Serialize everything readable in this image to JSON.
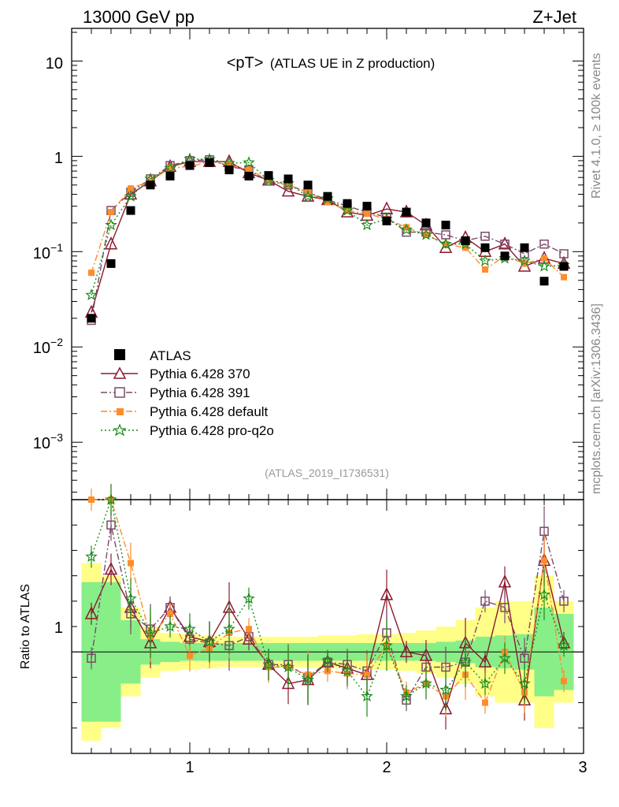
{
  "header": {
    "left": "13000 GeV pp",
    "right": "Z+Jet"
  },
  "side_labels": {
    "rivet": "Rivet 4.1.0, ≥ 100k events",
    "mcplots": "mcplots.cern.ch [arXiv:1306.3436]"
  },
  "chart_data": {
    "type": "scatter",
    "title": "<pT> (ATLAS UE in Z production)",
    "title_main": "<pT>",
    "title_sub": "(ATLAS UE in Z production)",
    "analysis_id": "(ATLAS_2019_I1736531)",
    "xlim": [
      0.4,
      3.0
    ],
    "ylim": [
      0.00025,
      22
    ],
    "yscale": "log",
    "xticks": [
      "1",
      "2",
      "3"
    ],
    "yticks": [
      "10",
      "1",
      "10^-1",
      "10^-2",
      "10^-3"
    ],
    "ratio_ylabel": "Ratio to ATLAS",
    "ratio_ylim": [
      0.2,
      2.2
    ],
    "ratio_tick": "1",
    "x": [
      0.5,
      0.6,
      0.7,
      0.8,
      0.9,
      1.0,
      1.1,
      1.2,
      1.3,
      1.4,
      1.5,
      1.6,
      1.7,
      1.8,
      1.9,
      2.0,
      2.1,
      2.2,
      2.3,
      2.4,
      2.5,
      2.6,
      2.7,
      2.8,
      2.9
    ],
    "data": {
      "name": "ATLAS",
      "values": [
        0.02,
        0.075,
        0.27,
        0.5,
        0.62,
        0.8,
        0.86,
        0.72,
        0.62,
        0.63,
        0.58,
        0.5,
        0.38,
        0.32,
        0.3,
        0.21,
        0.26,
        0.2,
        0.19,
        0.13,
        0.11,
        0.09,
        0.11,
        0.049,
        0.07
      ]
    },
    "series": [
      {
        "name": "Pythia 6.428 370",
        "color": "#8b1a2e",
        "marker": "triangle-open",
        "line": "solid",
        "values": [
          0.023,
          0.12,
          0.4,
          0.55,
          0.78,
          0.88,
          0.88,
          0.88,
          0.67,
          0.56,
          0.43,
          0.38,
          0.35,
          0.26,
          0.24,
          0.28,
          0.26,
          0.19,
          0.11,
          0.14,
          0.1,
          0.12,
          0.07,
          0.085,
          0.075
        ]
      },
      {
        "name": "Pythia 6.428 391",
        "color": "#7a4a6a",
        "marker": "square-open",
        "line": "dashdot",
        "values": [
          0.019,
          0.27,
          0.42,
          0.58,
          0.8,
          0.9,
          0.92,
          0.78,
          0.72,
          0.55,
          0.5,
          0.42,
          0.35,
          0.3,
          0.26,
          0.23,
          0.16,
          0.16,
          0.15,
          0.13,
          0.145,
          0.12,
          0.095,
          0.12,
          0.095
        ]
      },
      {
        "name": "Pythia 6.428 default",
        "color": "#ff8c2a",
        "marker": "square-filled",
        "line": "dashdot",
        "values": [
          0.06,
          0.26,
          0.46,
          0.55,
          0.76,
          0.78,
          0.88,
          0.82,
          0.73,
          0.56,
          0.5,
          0.42,
          0.33,
          0.27,
          0.25,
          0.22,
          0.18,
          0.15,
          0.12,
          0.11,
          0.065,
          0.09,
          0.075,
          0.085,
          0.054
        ]
      },
      {
        "name": "Pythia 6.428 pro-q2o",
        "color": "#1a8c1a",
        "marker": "star-open",
        "line": "dotted",
        "values": [
          0.035,
          0.19,
          0.38,
          0.58,
          0.75,
          0.94,
          0.93,
          0.85,
          0.86,
          0.56,
          0.52,
          0.38,
          0.36,
          0.27,
          0.19,
          0.22,
          0.17,
          0.15,
          0.12,
          0.12,
          0.08,
          0.085,
          0.08,
          0.07,
          0.072
        ]
      }
    ],
    "ratio_series": [
      {
        "name": "Pythia 6.428 370",
        "values": [
          1.3,
          1.65,
          1.35,
          1.07,
          1.35,
          1.12,
          1.08,
          1.35,
          1.1,
          0.9,
          0.75,
          0.78,
          0.92,
          0.87,
          0.82,
          1.45,
          1.0,
          0.97,
          0.55,
          1.07,
          0.92,
          1.55,
          0.62,
          1.72,
          1.07
        ]
      },
      {
        "name": "Pythia 6.428 391",
        "values": [
          0.95,
          2.0,
          1.3,
          1.18,
          1.35,
          1.1,
          1.07,
          1.05,
          1.12,
          0.9,
          0.9,
          0.8,
          0.92,
          0.9,
          0.85,
          1.15,
          0.62,
          0.88,
          0.88,
          0.92,
          1.4,
          1.35,
          0.95,
          1.95,
          1.4
        ]
      },
      {
        "name": "Pythia 6.428 default",
        "values": [
          3.0,
          3.2,
          1.7,
          1.12,
          1.3,
          0.97,
          1.03,
          1.15,
          1.18,
          0.88,
          0.88,
          0.82,
          0.85,
          0.83,
          0.82,
          1.05,
          0.68,
          0.75,
          0.65,
          0.82,
          0.6,
          1.0,
          0.68,
          1.72,
          0.77
        ]
      },
      {
        "name": "Pythia 6.428 pro-q2o",
        "values": [
          1.75,
          2.5,
          1.42,
          1.15,
          1.2,
          1.18,
          1.08,
          1.18,
          1.42,
          0.9,
          0.88,
          0.78,
          0.93,
          0.85,
          0.65,
          1.05,
          0.65,
          0.75,
          0.7,
          0.92,
          0.75,
          0.95,
          0.75,
          1.45,
          1.05
        ]
      }
    ],
    "ratio_band": {
      "x_edges": [
        0.45,
        0.55,
        0.65,
        0.75,
        0.85,
        0.95,
        1.05,
        1.15,
        1.25,
        1.35,
        1.45,
        1.55,
        1.65,
        1.75,
        1.85,
        1.95,
        2.05,
        2.15,
        2.25,
        2.35,
        2.45,
        2.55,
        2.65,
        2.75,
        2.85,
        2.95
      ],
      "stat_rel": [
        0.55,
        0.55,
        0.25,
        0.1,
        0.08,
        0.07,
        0.07,
        0.07,
        0.07,
        0.07,
        0.07,
        0.07,
        0.07,
        0.07,
        0.07,
        0.07,
        0.07,
        0.07,
        0.08,
        0.09,
        0.12,
        0.13,
        0.14,
        0.35,
        0.3
      ],
      "total_rel": [
        0.7,
        0.6,
        0.35,
        0.2,
        0.15,
        0.14,
        0.13,
        0.12,
        0.12,
        0.12,
        0.12,
        0.12,
        0.13,
        0.13,
        0.14,
        0.14,
        0.15,
        0.17,
        0.2,
        0.25,
        0.35,
        0.4,
        0.4,
        0.6,
        0.4
      ]
    }
  }
}
